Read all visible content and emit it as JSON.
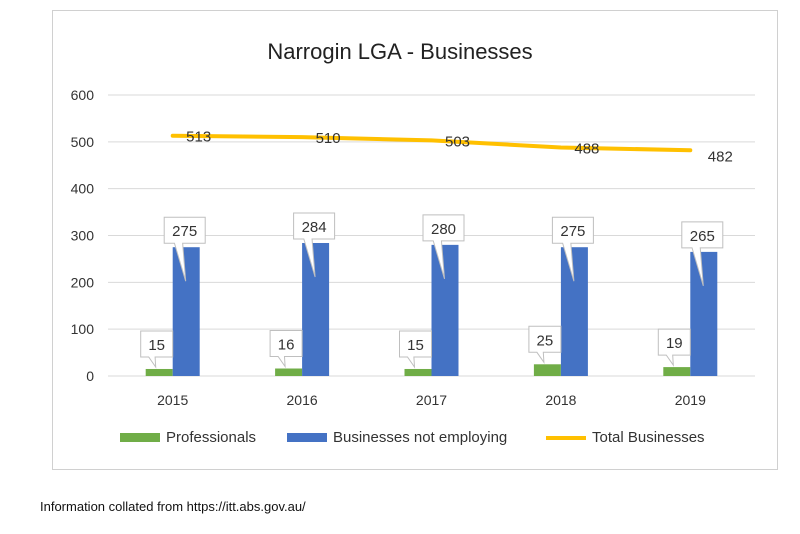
{
  "chart_data": {
    "type": "bar",
    "title": "Narrogin LGA - Businesses",
    "categories": [
      "2015",
      "2016",
      "2017",
      "2018",
      "2019"
    ],
    "ylim": [
      0,
      600
    ],
    "yticks": [
      0,
      100,
      200,
      300,
      400,
      500,
      600
    ],
    "grid": true,
    "legend_position": "bottom",
    "series": [
      {
        "name": "Professionals",
        "kind": "bar",
        "color": "#70ad47",
        "values": [
          15,
          16,
          15,
          25,
          19
        ]
      },
      {
        "name": "Businesses not employing",
        "kind": "bar",
        "color": "#4472c4",
        "values": [
          275,
          284,
          280,
          275,
          265
        ]
      },
      {
        "name": "Total Businesses",
        "kind": "line",
        "color": "#ffc000",
        "values": [
          513,
          510,
          503,
          488,
          482
        ]
      }
    ]
  },
  "footer": "Information collated from https://itt.abs.gov.au/"
}
